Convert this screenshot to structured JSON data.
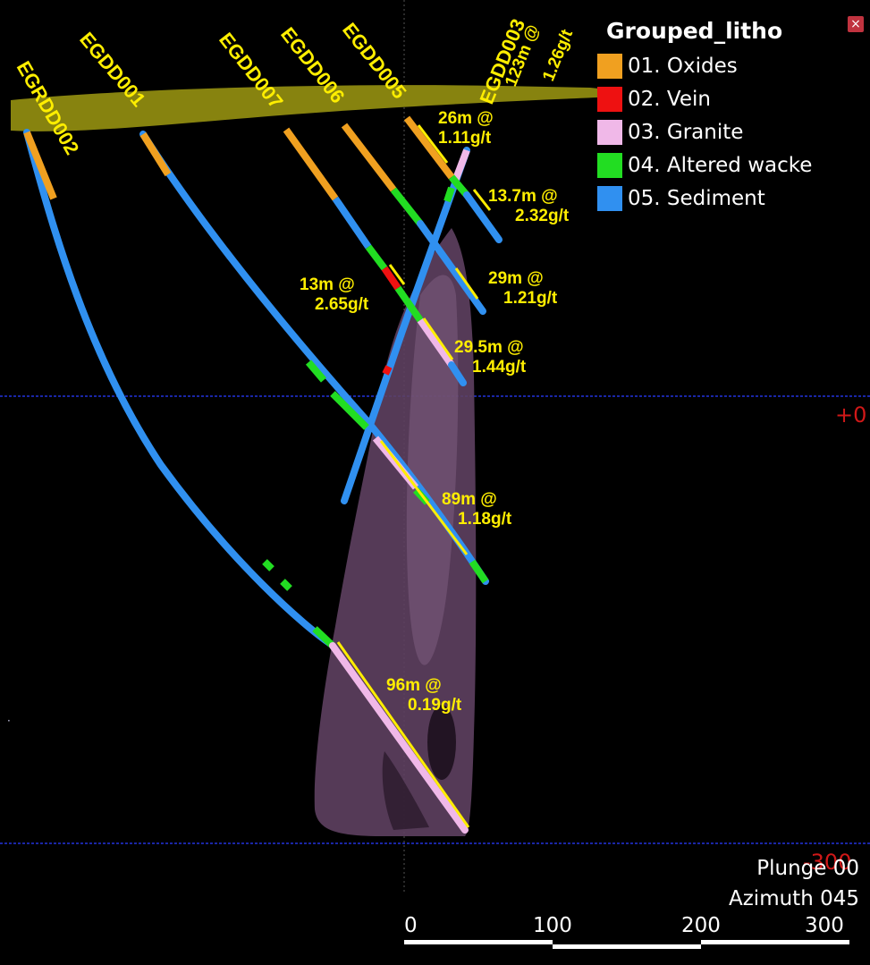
{
  "legend": {
    "title": "Grouped_litho",
    "items": [
      {
        "label": "01. Oxides",
        "color": "#f0a020"
      },
      {
        "label": "02. Vein",
        "color": "#ee1111"
      },
      {
        "label": "03. Granite",
        "color": "#f0b8e8"
      },
      {
        "label": "04. Altered wacke",
        "color": "#22dd22"
      },
      {
        "label": "05. Sediment",
        "color": "#3090f0"
      }
    ]
  },
  "drillholes": [
    {
      "name": "EGRDD002"
    },
    {
      "name": "EGDD001"
    },
    {
      "name": "EGDD007"
    },
    {
      "name": "EGDD006"
    },
    {
      "name": "EGDD005"
    },
    {
      "name": "EGDD003"
    }
  ],
  "intercepts": [
    {
      "l1": "123m @",
      "l2": "1.26g/t"
    },
    {
      "l1": "26m @",
      "l2": "1.11g/t"
    },
    {
      "l1": "13.7m @",
      "l2": "2.32g/t"
    },
    {
      "l1": "13m @",
      "l2": "2.65g/t"
    },
    {
      "l1": "29m @",
      "l2": "1.21g/t"
    },
    {
      "l1": "29.5m @",
      "l2": "1.44g/t"
    },
    {
      "l1": "89m @",
      "l2": "1.18g/t"
    },
    {
      "l1": "96m @",
      "l2": "0.19g/t"
    }
  ],
  "elevations": [
    "+0",
    "-300"
  ],
  "view": {
    "plunge": "Plunge 00",
    "azimuth": "Azimuth 045"
  },
  "scale_bar": {
    "ticks": [
      "0",
      "100",
      "200",
      "300"
    ]
  },
  "colors": {
    "surface": "#8e8a10",
    "granite_body": "#5e4060",
    "annotation": "#ffee00",
    "grid": "#2233dd",
    "elevation": "#d01818"
  }
}
